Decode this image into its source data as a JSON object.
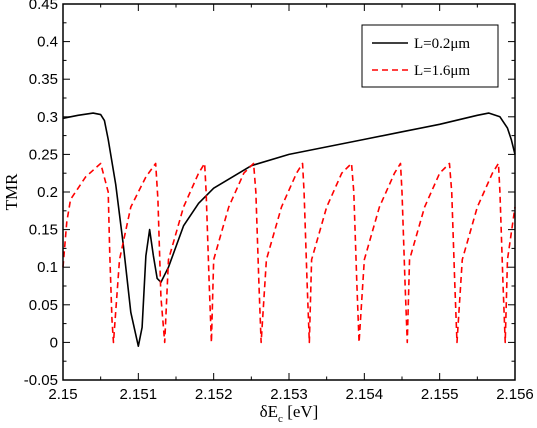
{
  "chart_data": {
    "type": "line",
    "title": "",
    "xlabel": {
      "main": "δE",
      "sub": "c",
      "unit": " [eV]"
    },
    "ylabel": "TMR",
    "xlim": [
      2.15,
      2.156
    ],
    "ylim": [
      -0.05,
      0.45
    ],
    "x_ticks": [
      "2.15",
      "2.151",
      "2.152",
      "2.153",
      "2.154",
      "2.155",
      "2.156"
    ],
    "y_ticks": [
      "-0.05",
      "0",
      "0.05",
      "0.1",
      "0.15",
      "0.2",
      "0.25",
      "0.3",
      "0.35",
      "0.4",
      "0.45"
    ],
    "grid": false,
    "legend_position": "top-right",
    "series": [
      {
        "name": "L=0.2μm",
        "color": "#000000",
        "dash": "solid",
        "x": [
          2.15,
          2.1502,
          2.1504,
          2.1505,
          2.15055,
          2.1506,
          2.1507,
          2.1508,
          2.1509,
          2.151,
          2.15105,
          2.1511,
          2.15115,
          2.1512,
          2.15125,
          2.1513,
          2.1514,
          2.1516,
          2.1518,
          2.152,
          2.1525,
          2.153,
          2.1535,
          2.154,
          2.1545,
          2.155,
          2.1555,
          2.15565,
          2.1558,
          2.1559,
          2.15595,
          2.156
        ],
        "y": [
          0.298,
          0.302,
          0.305,
          0.303,
          0.295,
          0.27,
          0.21,
          0.13,
          0.04,
          -0.005,
          0.02,
          0.115,
          0.15,
          0.115,
          0.085,
          0.08,
          0.1,
          0.155,
          0.185,
          0.205,
          0.235,
          0.25,
          0.26,
          0.27,
          0.28,
          0.29,
          0.302,
          0.305,
          0.3,
          0.285,
          0.27,
          0.25
        ]
      },
      {
        "name": "L=1.6μm",
        "color": "#ff0000",
        "dash": "dashed",
        "x": [
          2.15,
          2.15005,
          2.1501,
          2.1503,
          2.1505,
          2.1506,
          2.15062,
          2.15065,
          2.15067,
          2.15075,
          2.1509,
          2.1511,
          2.15123,
          2.15126,
          2.1513,
          2.15135,
          2.1514,
          2.1516,
          2.1518,
          2.15188,
          2.1519,
          2.15194,
          2.15197,
          2.152,
          2.1522,
          2.1524,
          2.15253,
          2.15256,
          2.1526,
          2.15263,
          2.1527,
          2.1529,
          2.1531,
          2.15318,
          2.1532,
          2.15324,
          2.15327,
          2.1533,
          2.1535,
          2.1537,
          2.15383,
          2.15386,
          2.1539,
          2.15393,
          2.154,
          2.1542,
          2.1544,
          2.15448,
          2.1545,
          2.15454,
          2.15457,
          2.1546,
          2.1548,
          2.155,
          2.15513,
          2.15516,
          2.1552,
          2.15523,
          2.1553,
          2.1555,
          2.1557,
          2.15578,
          2.1558,
          2.15584,
          2.15587,
          2.1559,
          2.156
        ],
        "y": [
          0.1,
          0.16,
          0.19,
          0.22,
          0.238,
          0.2,
          0.12,
          0.03,
          0.0,
          0.11,
          0.18,
          0.22,
          0.238,
          0.19,
          0.06,
          0.0,
          0.11,
          0.18,
          0.225,
          0.238,
          0.2,
          0.08,
          0.0,
          0.11,
          0.18,
          0.225,
          0.238,
          0.2,
          0.08,
          0.0,
          0.11,
          0.18,
          0.225,
          0.238,
          0.2,
          0.08,
          0.0,
          0.11,
          0.18,
          0.225,
          0.238,
          0.2,
          0.08,
          0.0,
          0.11,
          0.18,
          0.225,
          0.238,
          0.2,
          0.08,
          0.0,
          0.11,
          0.18,
          0.225,
          0.238,
          0.2,
          0.08,
          0.0,
          0.11,
          0.18,
          0.225,
          0.238,
          0.2,
          0.08,
          0.0,
          0.11,
          0.18
        ]
      }
    ]
  }
}
